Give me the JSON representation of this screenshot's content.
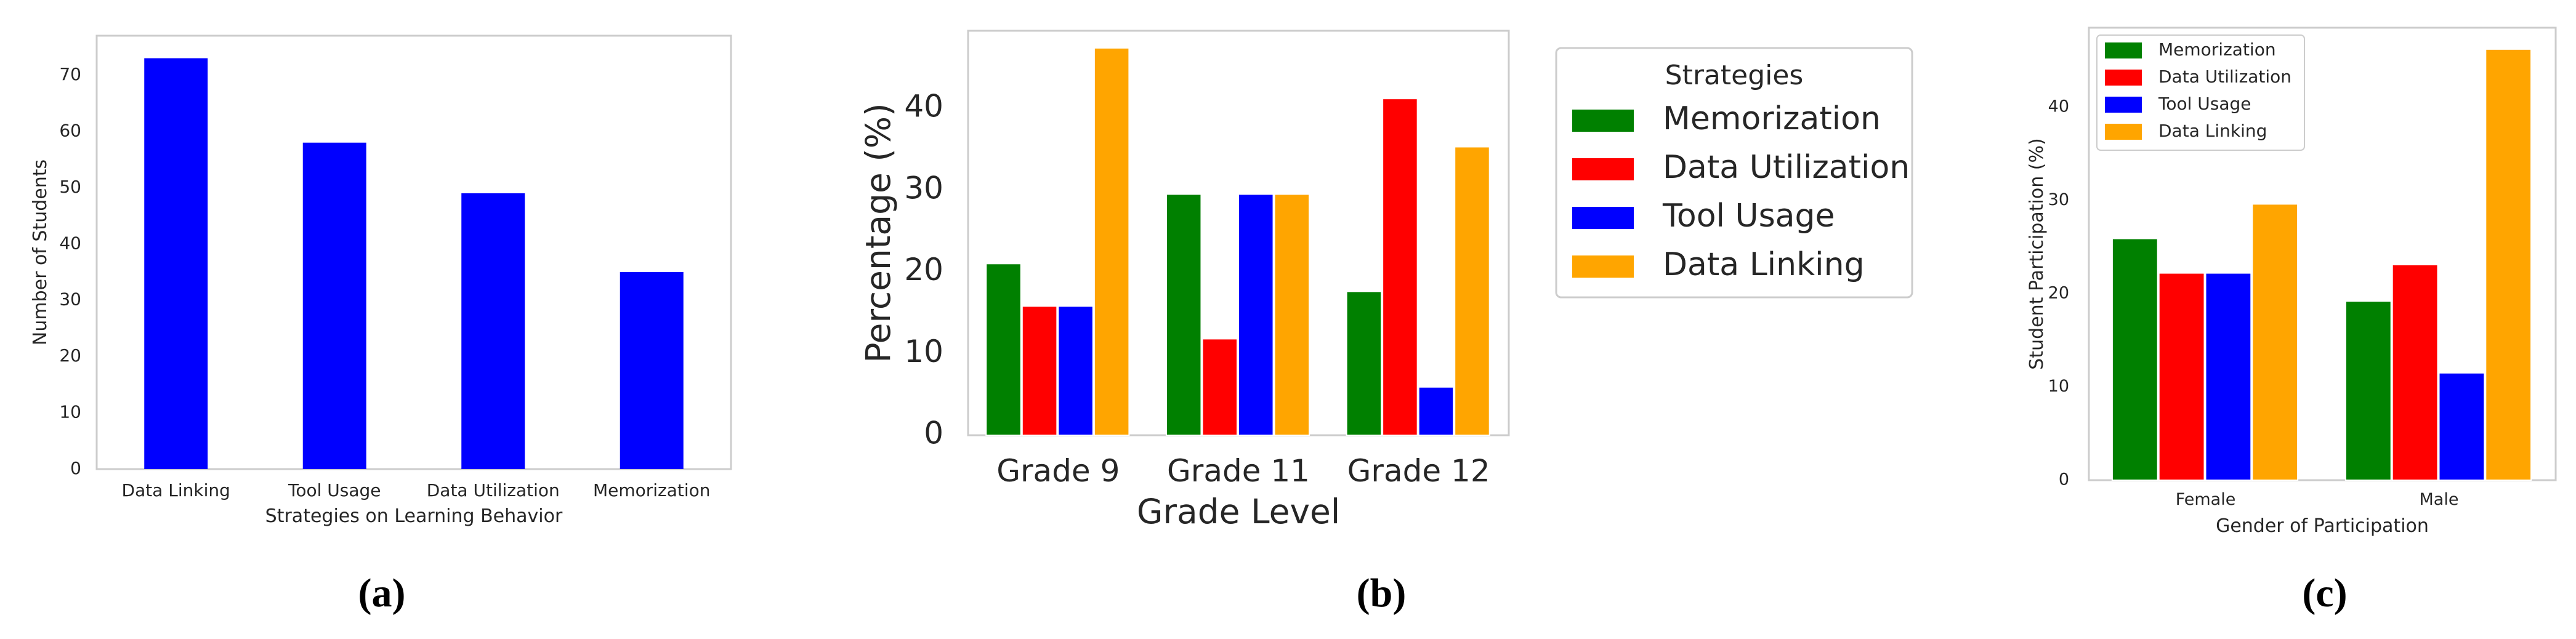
{
  "colors": {
    "green": "#008000",
    "red": "#ff0000",
    "blue": "#0000ff",
    "orange": "#ffa500",
    "axis": "#cccccc",
    "text": "#262626"
  },
  "chart_data": [
    {
      "id": "a",
      "type": "bar",
      "panel_label": "(a)",
      "categories": [
        "Data Linking",
        "Tool Usage",
        "Data Utilization",
        "Memorization"
      ],
      "values": [
        73,
        58,
        49,
        35
      ],
      "xlabel": "Strategies on Learning Behavior",
      "ylabel": "Number of Students",
      "ylim": [
        0,
        77
      ],
      "yticks": [
        0,
        10,
        20,
        30,
        40,
        50,
        60,
        70
      ],
      "bar_color": "#0000ff",
      "grid": false
    },
    {
      "id": "b",
      "type": "bar",
      "panel_label": "(b)",
      "categories": [
        "Grade 9",
        "Grade 11",
        "Grade 12"
      ],
      "series": [
        {
          "name": "Memorization",
          "color": "#008000",
          "values": [
            21,
            29.5,
            17.6
          ]
        },
        {
          "name": "Data Utilization",
          "color": "#ff0000",
          "values": [
            15.8,
            11.8,
            41.2
          ]
        },
        {
          "name": "Tool Usage",
          "color": "#0000ff",
          "values": [
            15.8,
            29.5,
            5.9
          ]
        },
        {
          "name": "Data Linking",
          "color": "#ffa500",
          "values": [
            47.4,
            29.5,
            35.3
          ]
        }
      ],
      "xlabel": "Grade Level",
      "ylabel": "Percentage (%)",
      "ylim": [
        0,
        49.5
      ],
      "yticks": [
        0,
        10,
        20,
        30,
        40
      ],
      "legend_title": "Strategies",
      "legend_position": "outside-right",
      "grid": false
    },
    {
      "id": "c",
      "type": "bar",
      "panel_label": "(c)",
      "categories": [
        "Female",
        "Male"
      ],
      "series": [
        {
          "name": "Memorization",
          "color": "#008000",
          "values": [
            25.9,
            19.2
          ]
        },
        {
          "name": "Data Utilization",
          "color": "#ff0000",
          "values": [
            22.2,
            23.1
          ]
        },
        {
          "name": "Tool Usage",
          "color": "#0000ff",
          "values": [
            22.2,
            11.5
          ]
        },
        {
          "name": "Data Linking",
          "color": "#ffa500",
          "values": [
            29.6,
            46.2
          ]
        }
      ],
      "xlabel": "Gender of Participation",
      "ylabel": "Student Participation (%)",
      "ylim": [
        0,
        48.5
      ],
      "yticks": [
        0,
        10,
        20,
        30,
        40
      ],
      "legend_position": "top-left",
      "grid": false
    }
  ]
}
